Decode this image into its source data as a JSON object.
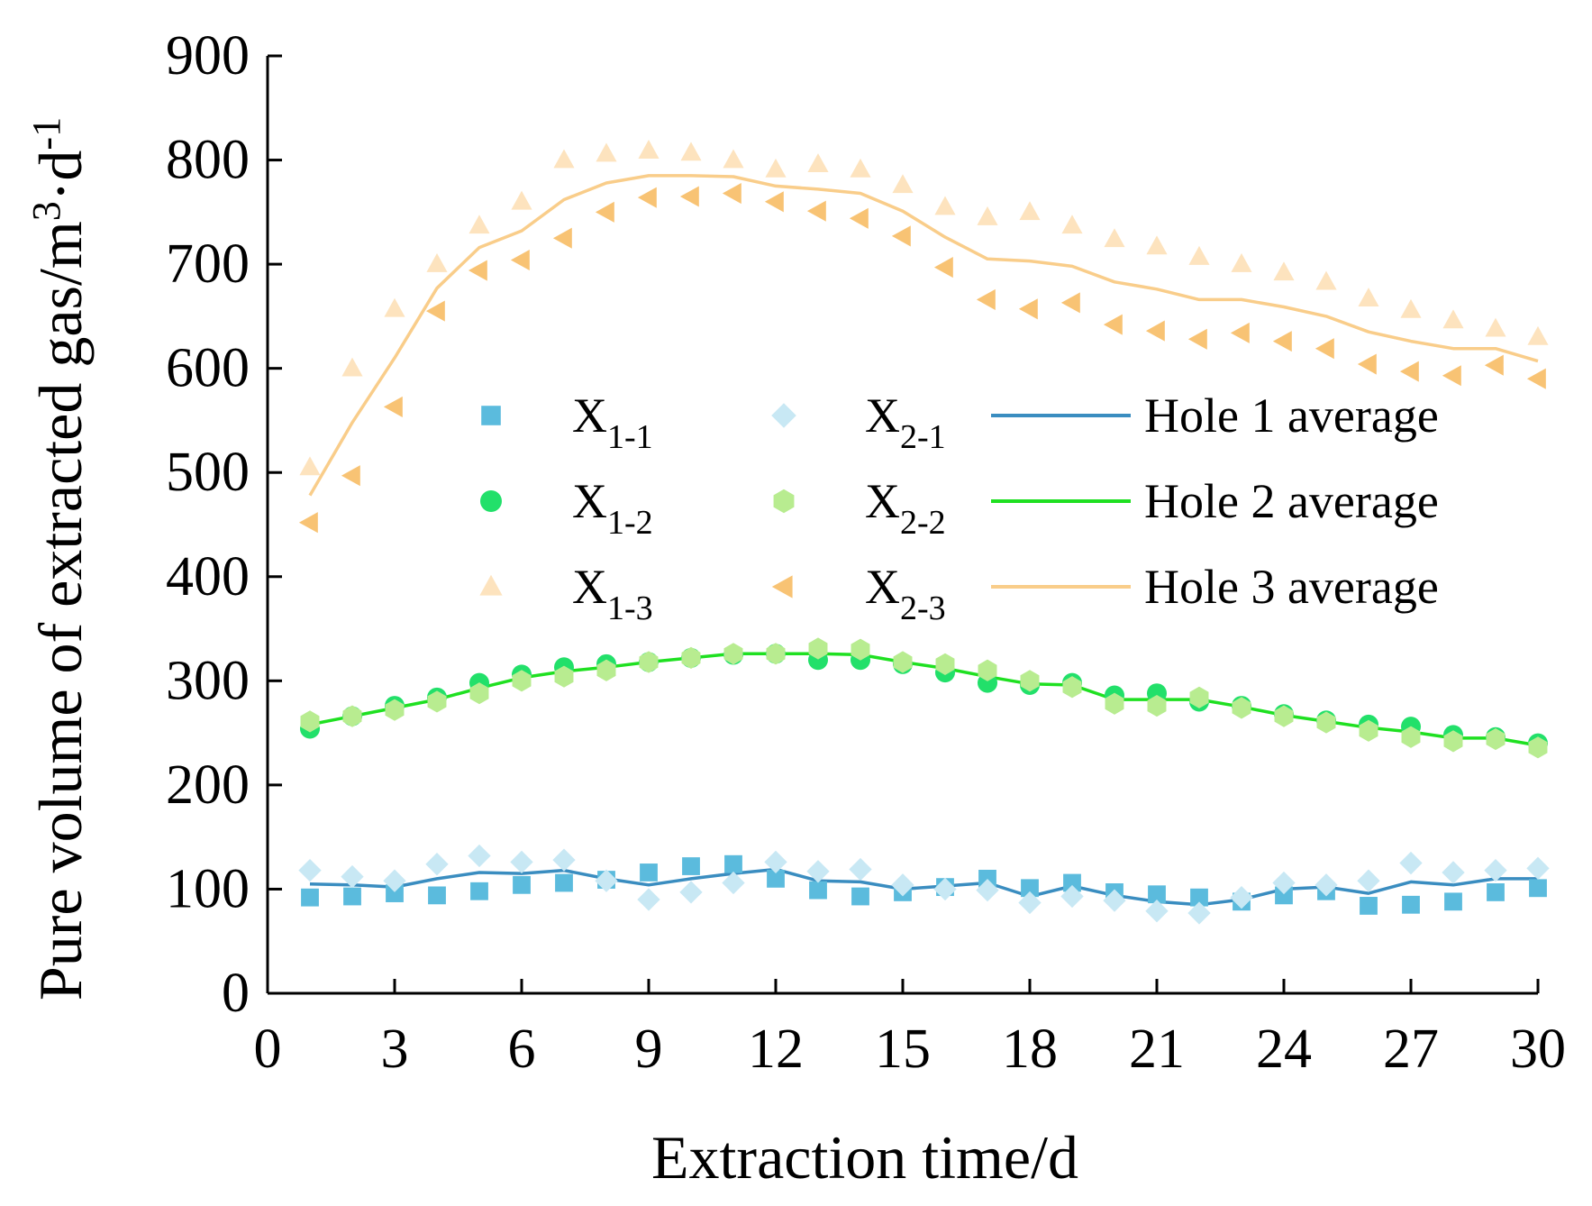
{
  "chart_data": {
    "type": "scatter",
    "title": "",
    "xlabel": "Extraction time/d",
    "ylabel": {
      "text": "Pure volume of extracted gas/m",
      "sup1": "3",
      "mid": "·d",
      "sup2": "-1"
    },
    "xlim": [
      0,
      30
    ],
    "ylim": [
      0,
      900
    ],
    "xticks": [
      0,
      3,
      6,
      9,
      12,
      15,
      18,
      21,
      24,
      27,
      30
    ],
    "yticks": [
      0,
      100,
      200,
      300,
      400,
      500,
      600,
      700,
      800,
      900
    ],
    "grid": false,
    "legend_position": "center",
    "x": [
      1,
      2,
      3,
      4,
      5,
      6,
      7,
      8,
      9,
      10,
      11,
      12,
      13,
      14,
      15,
      16,
      17,
      18,
      19,
      20,
      21,
      22,
      23,
      24,
      25,
      26,
      27,
      28,
      29,
      30
    ],
    "series": [
      {
        "name": "X",
        "sub": "1-1",
        "marker": "square",
        "color": "#5BBBDD",
        "values": [
          92,
          93,
          96,
          94,
          98,
          104,
          106,
          109,
          116,
          122,
          124,
          110,
          99,
          93,
          97,
          102,
          110,
          101,
          106,
          97,
          95,
          92,
          88,
          94,
          98,
          84,
          85,
          88,
          97,
          101
        ]
      },
      {
        "name": "X",
        "sub": "1-2",
        "marker": "circle",
        "color": "#22E06A",
        "values": [
          254,
          266,
          276,
          284,
          298,
          306,
          313,
          316,
          318,
          322,
          325,
          326,
          320,
          320,
          316,
          308,
          298,
          296,
          298,
          286,
          288,
          280,
          276,
          268,
          262,
          258,
          256,
          248,
          246,
          240
        ]
      },
      {
        "name": "X",
        "sub": "1-3",
        "marker": "triangle",
        "color": "#FDE3BE",
        "values": [
          505,
          600,
          657,
          700,
          737,
          760,
          800,
          806,
          809,
          807,
          800,
          791,
          796,
          791,
          776,
          755,
          745,
          750,
          737,
          724,
          717,
          707,
          700,
          692,
          683,
          667,
          656,
          646,
          638,
          630
        ]
      },
      {
        "name": "X",
        "sub": "2-1",
        "marker": "diamond",
        "color": "#C8E8F4",
        "values": [
          118,
          112,
          108,
          124,
          132,
          126,
          128,
          108,
          90,
          97,
          106,
          126,
          117,
          119,
          104,
          100,
          99,
          87,
          93,
          89,
          79,
          77,
          92,
          106,
          104,
          108,
          125,
          116,
          118,
          120
        ]
      },
      {
        "name": "X",
        "sub": "2-2",
        "marker": "hexagon",
        "color": "#B8EC90",
        "values": [
          261,
          266,
          272,
          280,
          288,
          300,
          304,
          310,
          318,
          322,
          326,
          326,
          331,
          330,
          318,
          316,
          310,
          300,
          294,
          278,
          276,
          284,
          274,
          266,
          260,
          252,
          246,
          242,
          244,
          236
        ]
      },
      {
        "name": "X",
        "sub": "2-3",
        "marker": "triangle-left",
        "color": "#F8C374",
        "values": [
          452,
          497,
          563,
          655,
          694,
          704,
          725,
          750,
          764,
          765,
          768,
          760,
          751,
          744,
          727,
          697,
          666,
          657,
          663,
          642,
          636,
          628,
          634,
          626,
          619,
          604,
          597,
          593,
          603,
          590
        ]
      }
    ],
    "averages": [
      {
        "name": "Hole 1 average",
        "color": "#3A8DC0",
        "values": [
          105,
          104,
          102,
          110,
          116,
          115,
          118,
          110,
          104,
          110,
          115,
          119,
          108,
          107,
          100,
          103,
          106,
          93,
          103,
          94,
          88,
          85,
          90,
          100,
          102,
          96,
          107,
          104,
          110,
          110
        ]
      },
      {
        "name": "Hole 2 average",
        "color": "#1FE021",
        "values": [
          258,
          266,
          274,
          282,
          293,
          303,
          309,
          313,
          318,
          322,
          326,
          326,
          326,
          325,
          318,
          312,
          304,
          297,
          296,
          282,
          282,
          282,
          275,
          267,
          261,
          255,
          251,
          245,
          245,
          238
        ]
      },
      {
        "name": "Hole 3 average",
        "color": "#F9CD8A",
        "values": [
          478,
          548,
          610,
          677,
          716,
          732,
          762,
          778,
          785,
          785,
          784,
          775,
          772,
          768,
          751,
          726,
          705,
          703,
          698,
          683,
          676,
          666,
          666,
          659,
          650,
          635,
          626,
          619,
          619,
          607
        ]
      }
    ]
  }
}
